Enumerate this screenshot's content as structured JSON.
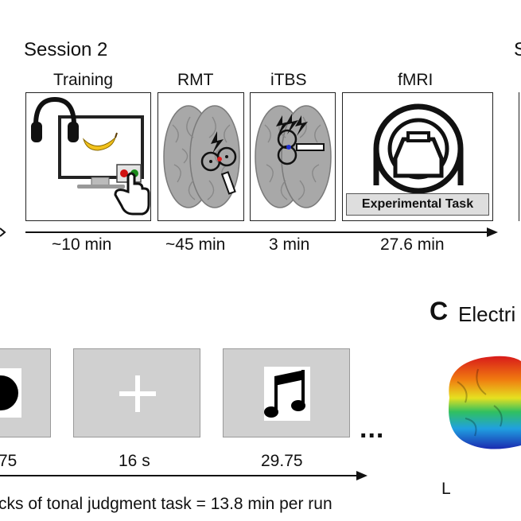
{
  "session_title": "Session 2",
  "edge_glyph": "S",
  "stages": [
    {
      "label": "Training",
      "duration": "~10 min"
    },
    {
      "label": "RMT",
      "duration": "~45 min"
    },
    {
      "label": "iTBS",
      "duration": "3 min"
    },
    {
      "label": "fMRI",
      "duration": "27.6 min"
    }
  ],
  "experimental_task_label": "Experimental Task",
  "panel_c": {
    "letter": "C",
    "title_partial": "Electri",
    "side_label": "L"
  },
  "task_blocks": {
    "durations": [
      "75",
      "16 s",
      "29.75"
    ],
    "ellipsis": "...",
    "caption": "cks of tonal judgment task = 13.8 min per run"
  },
  "colors": {
    "brain_gray": "#a8a8a8",
    "screen_gray": "#d0d0d0",
    "banana": "#f2c21c",
    "red_button": "#d01010",
    "green_button": "#1a8a1a"
  }
}
